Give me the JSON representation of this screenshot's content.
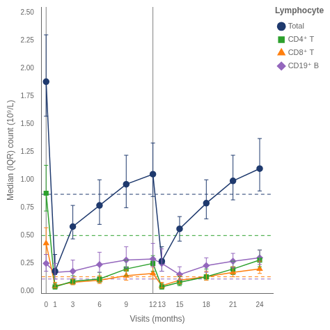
{
  "chart_data": {
    "type": "line",
    "xlabel": "Visits (months)",
    "ylabel": "Median (IQR) count (10⁹/L)",
    "x": [
      0,
      1,
      3,
      6,
      9,
      12,
      13,
      15,
      18,
      21,
      24
    ],
    "xlim": [
      -0.5,
      25.5
    ],
    "xticks": [
      0,
      1,
      3,
      6,
      9,
      12,
      13,
      15,
      18,
      21,
      24
    ],
    "ylim": [
      -0.02,
      2.55
    ],
    "yticks": [
      {
        "value": 0.0,
        "label": "0.00"
      },
      0.25,
      {
        "value": 0.5,
        "label": "0.50"
      },
      0.75,
      {
        "value": 1.0,
        "label": "1.00"
      },
      1.25,
      {
        "value": 1.5,
        "label": "1.50"
      },
      1.75,
      {
        "value": 2.0,
        "label": "2.00"
      },
      2.25,
      {
        "value": 2.5,
        "label": "2.50"
      }
    ],
    "grid": false,
    "legend": "right",
    "legend_title": "Lymphocyte",
    "vlines": [
      0,
      12
    ],
    "series": [
      {
        "name": "Total",
        "color": "#1f3a6e",
        "marker": "circle",
        "values": [
          1.88,
          0.18,
          0.58,
          0.77,
          0.96,
          1.05,
          0.27,
          0.56,
          0.79,
          0.99,
          1.1
        ],
        "lower": [
          1.57,
          0.15,
          0.47,
          0.6,
          0.75,
          0.85,
          0.18,
          0.45,
          0.65,
          0.82,
          0.9
        ],
        "upper": [
          2.3,
          0.33,
          0.77,
          1.0,
          1.22,
          1.33,
          0.4,
          0.67,
          1.0,
          1.22,
          1.37
        ],
        "reference": 0.87
      },
      {
        "name": "CD4⁺ T",
        "color": "#2ca02c",
        "marker": "square",
        "values": [
          0.88,
          0.04,
          0.09,
          0.11,
          0.2,
          0.25,
          0.04,
          0.08,
          0.13,
          0.2,
          0.28
        ],
        "lower": [
          0.72,
          0.02,
          0.06,
          0.08,
          0.14,
          0.18,
          0.02,
          0.05,
          0.1,
          0.15,
          0.22
        ],
        "upper": [
          1.13,
          0.07,
          0.14,
          0.17,
          0.28,
          0.32,
          0.07,
          0.13,
          0.2,
          0.27,
          0.37
        ],
        "reference": 0.5
      },
      {
        "name": "CD8⁺ T",
        "color": "#ff7f0e",
        "marker": "triangle",
        "values": [
          0.43,
          0.05,
          0.08,
          0.1,
          0.14,
          0.16,
          0.05,
          0.1,
          0.13,
          0.17,
          0.2
        ],
        "lower": [
          0.33,
          0.03,
          0.06,
          0.07,
          0.1,
          0.11,
          0.03,
          0.07,
          0.1,
          0.13,
          0.16
        ],
        "upper": [
          0.57,
          0.08,
          0.11,
          0.14,
          0.19,
          0.22,
          0.08,
          0.14,
          0.18,
          0.22,
          0.27
        ],
        "reference": 0.13
      },
      {
        "name": "CD19⁺ B",
        "color": "#9467bd",
        "marker": "diamond",
        "values": [
          0.25,
          0.17,
          0.18,
          0.24,
          0.28,
          0.29,
          0.25,
          0.15,
          0.23,
          0.27,
          0.3
        ],
        "lower": [
          0.18,
          0.11,
          0.12,
          0.17,
          0.21,
          0.22,
          0.18,
          0.1,
          0.17,
          0.21,
          0.24
        ],
        "upper": [
          0.33,
          0.25,
          0.28,
          0.35,
          0.4,
          0.43,
          0.38,
          0.22,
          0.3,
          0.34,
          0.37
        ],
        "reference": 0.11
      }
    ]
  }
}
